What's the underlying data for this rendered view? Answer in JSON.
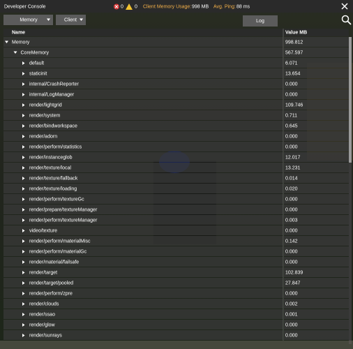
{
  "header": {
    "title": "Developer Console",
    "error_count": "0",
    "warning_count": "0",
    "memory_label": "Client Memory Usage:",
    "memory_value": "998 MB",
    "ping_label": "Avg. Ping:",
    "ping_value": "88 ms"
  },
  "controls": {
    "view_dropdown": "Memory",
    "target_dropdown": "Client",
    "log_button": "Log"
  },
  "table": {
    "columns": [
      "Name",
      "Value MB"
    ],
    "root": {
      "name": "Memory",
      "value": "998.812",
      "children": [
        {
          "name": "CoreMemory",
          "value": "567.597",
          "children": [
            {
              "name": "default",
              "value": "6.071"
            },
            {
              "name": "staticinit",
              "value": "13.654"
            },
            {
              "name": "internal/CrashReporter",
              "value": "0.000"
            },
            {
              "name": "internal/LogManager",
              "value": "0.000"
            },
            {
              "name": "render/lightgrid",
              "value": "109.746"
            },
            {
              "name": "render/system",
              "value": "0.711"
            },
            {
              "name": "render/bindworkspace",
              "value": "0.645"
            },
            {
              "name": "render/adorn",
              "value": "0.000"
            },
            {
              "name": "render/perform/statistics",
              "value": "0.000"
            },
            {
              "name": "render/instanceglob",
              "value": "12.017"
            },
            {
              "name": "render/texture/local",
              "value": "13.231"
            },
            {
              "name": "render/texture/fallback",
              "value": "0.014"
            },
            {
              "name": "render/texture/loading",
              "value": "0.020"
            },
            {
              "name": "render/perform/textureGc",
              "value": "0.000"
            },
            {
              "name": "render/prepare/textureManager",
              "value": "0.000"
            },
            {
              "name": "render/perform/textureManager",
              "value": "0.003"
            },
            {
              "name": "video/texture",
              "value": "0.000"
            },
            {
              "name": "render/perform/materialMisc",
              "value": "0.142"
            },
            {
              "name": "render/perform/materialGc",
              "value": "0.000"
            },
            {
              "name": "render/material/failsafe",
              "value": "0.000"
            },
            {
              "name": "render/target",
              "value": "102.839"
            },
            {
              "name": "render/target/pooled",
              "value": "27.847"
            },
            {
              "name": "render/perform/zpre",
              "value": "0.000"
            },
            {
              "name": "render/clouds",
              "value": "0.002"
            },
            {
              "name": "render/ssao",
              "value": "0.001"
            },
            {
              "name": "render/glow",
              "value": "0.000"
            },
            {
              "name": "render/sunrays",
              "value": "0.000"
            }
          ]
        }
      ]
    }
  }
}
